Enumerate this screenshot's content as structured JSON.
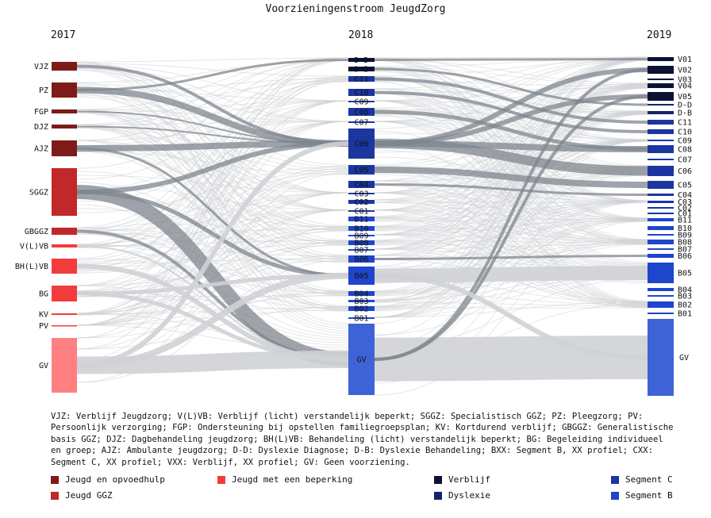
{
  "title": "Voorzieningenstroom JeugdZorg",
  "years": [
    "2017",
    "2018",
    "2019"
  ],
  "colors": {
    "jeugd_opvoedhulp": "#7f1a1a",
    "jeugd_ggz": "#c0282a",
    "beperking": "#f23c3c",
    "bg_gv": "#ff8080",
    "verblijf": "#0b1233",
    "dyslexie": "#15246a",
    "segment_c": "#1b36a0",
    "segment_b": "#1f45cc",
    "gv": "#3e63d6",
    "link_dark": "#7f868d",
    "link_light": "#cfd2d5"
  },
  "nodes_2017": [
    {
      "label": "VJZ",
      "color": "#7f1a1a"
    },
    {
      "label": "PZ",
      "color": "#7f1a1a"
    },
    {
      "label": "FGP",
      "color": "#7f1a1a"
    },
    {
      "label": "DJZ",
      "color": "#7f1a1a"
    },
    {
      "label": "AJZ",
      "color": "#7f1a1a"
    },
    {
      "label": "SGGZ",
      "color": "#c0282a"
    },
    {
      "label": "GBGGZ",
      "color": "#c0282a"
    },
    {
      "label": "V(L)VB",
      "color": "#f23c3c"
    },
    {
      "label": "BH(L)VB",
      "color": "#f23c3c"
    },
    {
      "label": "BG",
      "color": "#f23c3c"
    },
    {
      "label": "KV",
      "color": "#f23c3c"
    },
    {
      "label": "PV",
      "color": "#f23c3c"
    },
    {
      "label": "GV",
      "color": "#ff8080"
    }
  ],
  "nodes_2018": [
    "D-D",
    "D-B",
    "C11",
    "C10",
    "C09",
    "C08",
    "C07",
    "C06",
    "C05",
    "C04",
    "C03",
    "C02",
    "C01",
    "B11",
    "B10",
    "B09",
    "B08",
    "B07",
    "B06",
    "B05",
    "B04",
    "B03",
    "B02",
    "B01",
    "GV"
  ],
  "nodes_2019": [
    "V01",
    "V02",
    "V03",
    "V04",
    "V05",
    "D-D",
    "D-B",
    "C11",
    "C10",
    "C09",
    "C08",
    "C07",
    "C06",
    "C05",
    "C04",
    "C03",
    "C02",
    "C01",
    "B11",
    "B10",
    "B09",
    "B08",
    "B07",
    "B06",
    "B05",
    "B04",
    "B03",
    "B02",
    "B01",
    "GV"
  ],
  "description": "VJZ: Verblijf Jeugdzorg; V(L)VB: Verblijf (licht) verstandelijk beperkt; SGGZ: Specialistisch GGZ; PZ: Pleegzorg; PV: Persoonlijk verzorging; FGP: Ondersteuning bij opstellen familiegroepsplan; KV: Kortdurend verblijf; GBGGZ: Generalistische basis GGZ; DJZ: Dagbehandeling jeugdzorg; BH(L)VB: Behandeling (licht) verstandelijk beperkt; BG: Begeleiding individueel en groep; AJZ: Ambulante jeugdzorg; D-D: Dyslexie Diagnose; D-B: Dyslexie Behandeling; BXX: Segment B, XX profiel; CXX: Segment C, XX profiel; VXX: Verblijf, XX profiel; GV: Geen voorziening.",
  "legend": [
    {
      "label": "Jeugd en opvoedhulp",
      "color": "#7f1a1a"
    },
    {
      "label": "Jeugd met een beperking",
      "color": "#f23c3c"
    },
    {
      "label": "Verblijf",
      "color": "#0b1233"
    },
    {
      "label": "Segment C",
      "color": "#1b36a0"
    },
    {
      "label": "Jeugd GGZ",
      "color": "#c0282a"
    },
    {
      "label": "Dyslexie",
      "color": "#15246a"
    },
    {
      "label": "Segment B",
      "color": "#1f45cc"
    }
  ]
}
